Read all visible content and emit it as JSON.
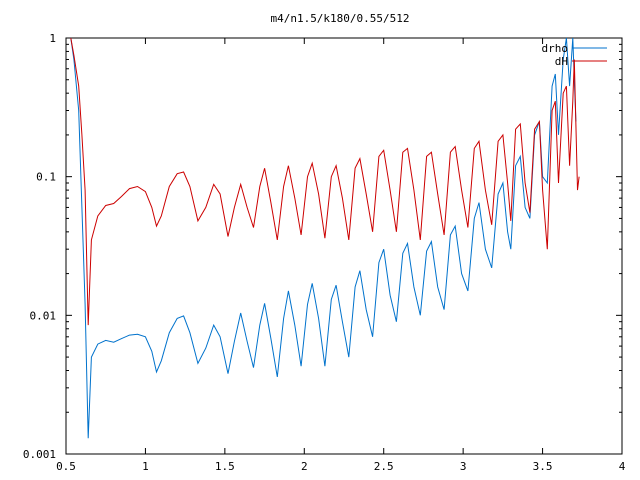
{
  "chart_data": {
    "type": "line",
    "title": "m4/n1.5/k180/0.55/512",
    "xlabel": "",
    "ylabel": "",
    "xlim": [
      0.5,
      4
    ],
    "ylim": [
      0.001,
      1
    ],
    "yscale": "log",
    "grid": false,
    "legend_position": "top-right",
    "x_ticks": [
      {
        "value": 0.5,
        "label": "0.5"
      },
      {
        "value": 1,
        "label": "1"
      },
      {
        "value": 1.5,
        "label": "1.5"
      },
      {
        "value": 2,
        "label": "2"
      },
      {
        "value": 2.5,
        "label": "2.5"
      },
      {
        "value": 3,
        "label": "3"
      },
      {
        "value": 3.5,
        "label": "3.5"
      },
      {
        "value": 4,
        "label": "4"
      }
    ],
    "y_ticks": [
      {
        "value": 0.001,
        "label": "0.001"
      },
      {
        "value": 0.01,
        "label": "0.01"
      },
      {
        "value": 0.1,
        "label": "0.1"
      },
      {
        "value": 1,
        "label": "1"
      }
    ],
    "series": [
      {
        "name": "drho",
        "color": "#0072cc",
        "points": [
          [
            0.53,
            1.0
          ],
          [
            0.55,
            0.7
          ],
          [
            0.58,
            0.3
          ],
          [
            0.6,
            0.06
          ],
          [
            0.62,
            0.012
          ],
          [
            0.64,
            0.0013
          ],
          [
            0.66,
            0.005
          ],
          [
            0.7,
            0.0062
          ],
          [
            0.75,
            0.0066
          ],
          [
            0.8,
            0.0064
          ],
          [
            0.85,
            0.0068
          ],
          [
            0.9,
            0.0072
          ],
          [
            0.95,
            0.0073
          ],
          [
            1.0,
            0.007
          ],
          [
            1.04,
            0.0055
          ],
          [
            1.07,
            0.0039
          ],
          [
            1.1,
            0.0047
          ],
          [
            1.15,
            0.0075
          ],
          [
            1.2,
            0.0095
          ],
          [
            1.24,
            0.0099
          ],
          [
            1.28,
            0.0075
          ],
          [
            1.33,
            0.0045
          ],
          [
            1.38,
            0.0058
          ],
          [
            1.43,
            0.0085
          ],
          [
            1.47,
            0.007
          ],
          [
            1.52,
            0.0038
          ],
          [
            1.56,
            0.0065
          ],
          [
            1.6,
            0.0104
          ],
          [
            1.64,
            0.0065
          ],
          [
            1.68,
            0.0042
          ],
          [
            1.72,
            0.0085
          ],
          [
            1.75,
            0.0122
          ],
          [
            1.79,
            0.0068
          ],
          [
            1.83,
            0.0036
          ],
          [
            1.87,
            0.0095
          ],
          [
            1.9,
            0.015
          ],
          [
            1.94,
            0.0085
          ],
          [
            1.98,
            0.0043
          ],
          [
            2.02,
            0.012
          ],
          [
            2.05,
            0.017
          ],
          [
            2.09,
            0.0095
          ],
          [
            2.13,
            0.0043
          ],
          [
            2.17,
            0.013
          ],
          [
            2.2,
            0.0165
          ],
          [
            2.24,
            0.009
          ],
          [
            2.28,
            0.005
          ],
          [
            2.32,
            0.016
          ],
          [
            2.35,
            0.021
          ],
          [
            2.39,
            0.011
          ],
          [
            2.43,
            0.007
          ],
          [
            2.47,
            0.024
          ],
          [
            2.5,
            0.03
          ],
          [
            2.54,
            0.014
          ],
          [
            2.58,
            0.009
          ],
          [
            2.62,
            0.028
          ],
          [
            2.65,
            0.033
          ],
          [
            2.69,
            0.016
          ],
          [
            2.73,
            0.01
          ],
          [
            2.77,
            0.029
          ],
          [
            2.8,
            0.034
          ],
          [
            2.84,
            0.016
          ],
          [
            2.88,
            0.011
          ],
          [
            2.92,
            0.038
          ],
          [
            2.95,
            0.044
          ],
          [
            2.99,
            0.02
          ],
          [
            3.03,
            0.015
          ],
          [
            3.07,
            0.05
          ],
          [
            3.1,
            0.065
          ],
          [
            3.14,
            0.03
          ],
          [
            3.18,
            0.022
          ],
          [
            3.22,
            0.075
          ],
          [
            3.25,
            0.09
          ],
          [
            3.28,
            0.04
          ],
          [
            3.3,
            0.03
          ],
          [
            3.33,
            0.12
          ],
          [
            3.36,
            0.14
          ],
          [
            3.39,
            0.06
          ],
          [
            3.42,
            0.05
          ],
          [
            3.45,
            0.2
          ],
          [
            3.48,
            0.25
          ],
          [
            3.5,
            0.1
          ],
          [
            3.53,
            0.09
          ],
          [
            3.56,
            0.45
          ],
          [
            3.58,
            0.55
          ],
          [
            3.6,
            0.2
          ],
          [
            3.63,
            0.7
          ],
          [
            3.65,
            1.0
          ],
          [
            3.67,
            0.45
          ],
          [
            3.69,
            1.0
          ],
          [
            3.7,
            0.5
          ],
          [
            3.71,
            0.25
          ]
        ]
      },
      {
        "name": "dH",
        "color": "#cc0000",
        "points": [
          [
            0.53,
            1.0
          ],
          [
            0.55,
            0.75
          ],
          [
            0.58,
            0.45
          ],
          [
            0.6,
            0.2
          ],
          [
            0.62,
            0.08
          ],
          [
            0.64,
            0.0085
          ],
          [
            0.66,
            0.035
          ],
          [
            0.7,
            0.052
          ],
          [
            0.75,
            0.062
          ],
          [
            0.8,
            0.064
          ],
          [
            0.85,
            0.072
          ],
          [
            0.9,
            0.082
          ],
          [
            0.95,
            0.085
          ],
          [
            1.0,
            0.078
          ],
          [
            1.04,
            0.06
          ],
          [
            1.07,
            0.044
          ],
          [
            1.1,
            0.052
          ],
          [
            1.15,
            0.085
          ],
          [
            1.2,
            0.105
          ],
          [
            1.24,
            0.108
          ],
          [
            1.28,
            0.085
          ],
          [
            1.33,
            0.048
          ],
          [
            1.38,
            0.06
          ],
          [
            1.43,
            0.088
          ],
          [
            1.47,
            0.075
          ],
          [
            1.52,
            0.037
          ],
          [
            1.56,
            0.06
          ],
          [
            1.6,
            0.088
          ],
          [
            1.64,
            0.06
          ],
          [
            1.68,
            0.043
          ],
          [
            1.72,
            0.085
          ],
          [
            1.75,
            0.115
          ],
          [
            1.79,
            0.065
          ],
          [
            1.83,
            0.035
          ],
          [
            1.87,
            0.085
          ],
          [
            1.9,
            0.12
          ],
          [
            1.94,
            0.07
          ],
          [
            1.98,
            0.038
          ],
          [
            2.02,
            0.1
          ],
          [
            2.05,
            0.125
          ],
          [
            2.09,
            0.075
          ],
          [
            2.13,
            0.036
          ],
          [
            2.17,
            0.1
          ],
          [
            2.2,
            0.12
          ],
          [
            2.24,
            0.07
          ],
          [
            2.28,
            0.035
          ],
          [
            2.32,
            0.115
          ],
          [
            2.35,
            0.135
          ],
          [
            2.39,
            0.075
          ],
          [
            2.43,
            0.04
          ],
          [
            2.47,
            0.14
          ],
          [
            2.5,
            0.155
          ],
          [
            2.54,
            0.08
          ],
          [
            2.58,
            0.04
          ],
          [
            2.62,
            0.15
          ],
          [
            2.65,
            0.16
          ],
          [
            2.69,
            0.08
          ],
          [
            2.73,
            0.035
          ],
          [
            2.77,
            0.14
          ],
          [
            2.8,
            0.15
          ],
          [
            2.84,
            0.075
          ],
          [
            2.88,
            0.038
          ],
          [
            2.92,
            0.15
          ],
          [
            2.95,
            0.165
          ],
          [
            2.99,
            0.08
          ],
          [
            3.03,
            0.043
          ],
          [
            3.07,
            0.16
          ],
          [
            3.1,
            0.18
          ],
          [
            3.14,
            0.08
          ],
          [
            3.18,
            0.045
          ],
          [
            3.22,
            0.18
          ],
          [
            3.25,
            0.2
          ],
          [
            3.28,
            0.09
          ],
          [
            3.3,
            0.048
          ],
          [
            3.33,
            0.22
          ],
          [
            3.36,
            0.24
          ],
          [
            3.39,
            0.09
          ],
          [
            3.42,
            0.055
          ],
          [
            3.45,
            0.22
          ],
          [
            3.48,
            0.25
          ],
          [
            3.5,
            0.08
          ],
          [
            3.53,
            0.03
          ],
          [
            3.56,
            0.3
          ],
          [
            3.58,
            0.35
          ],
          [
            3.6,
            0.09
          ],
          [
            3.63,
            0.4
          ],
          [
            3.65,
            0.45
          ],
          [
            3.67,
            0.12
          ],
          [
            3.69,
            0.35
          ],
          [
            3.7,
            0.7
          ],
          [
            3.72,
            0.08
          ],
          [
            3.73,
            0.1
          ]
        ]
      }
    ]
  }
}
